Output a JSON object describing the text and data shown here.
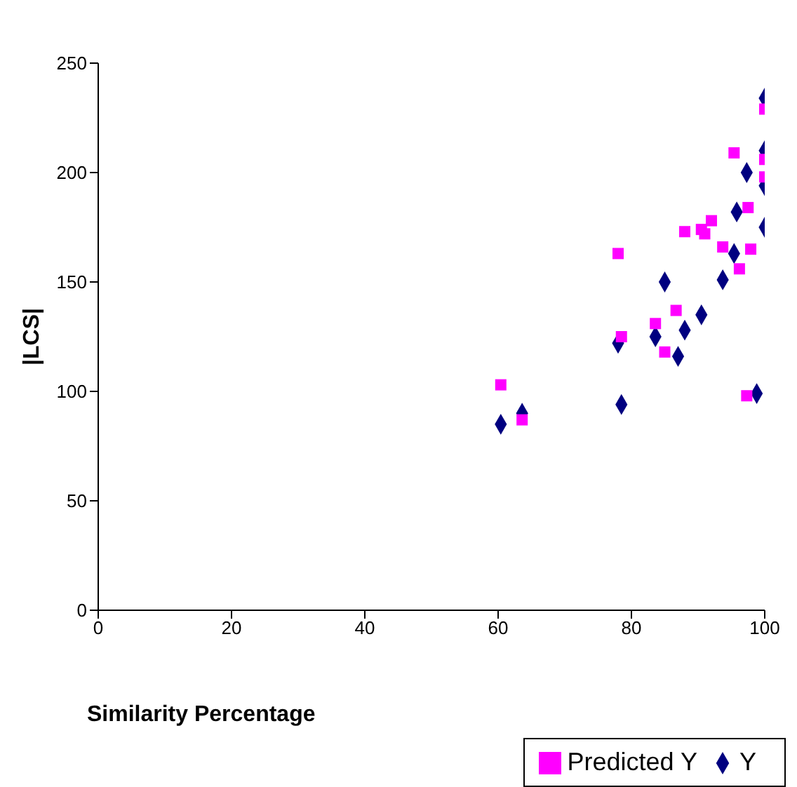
{
  "chart_data": {
    "type": "scatter",
    "xlabel": "Similarity Percentage",
    "ylabel": "|LCS|",
    "xlim": [
      0,
      100
    ],
    "xticks": [
      0,
      20,
      40,
      60,
      80,
      100
    ],
    "ylim": [
      0,
      250
    ],
    "yticks": [
      0,
      50,
      100,
      150,
      200,
      250
    ],
    "grid": false,
    "legend": "bottom right",
    "series": [
      {
        "name": "Y",
        "color": "#000080",
        "marker": "diamond",
        "x": [
          60.4,
          63.6,
          78.5,
          78,
          85,
          83.6,
          87,
          88,
          90.5,
          93.7,
          95.4,
          95.8,
          97.3,
          98.8,
          100,
          100,
          100,
          100
        ],
        "values": [
          85,
          90,
          94,
          122,
          150,
          125,
          116,
          128,
          135,
          151,
          163,
          182,
          200,
          99,
          234,
          194,
          175,
          210
        ]
      },
      {
        "name": "Predicted Y",
        "color": "#ff00ff",
        "marker": "square",
        "x": [
          60.4,
          63.6,
          78,
          78.5,
          83.6,
          85,
          86.7,
          88,
          90.5,
          91,
          92,
          93.7,
          96.2,
          97.9,
          97.5,
          97.3,
          95.4,
          100,
          100,
          100
        ],
        "values": [
          103,
          87,
          163,
          125,
          131,
          118,
          137,
          173,
          174,
          172,
          178,
          166,
          156,
          165,
          184,
          98,
          209,
          229,
          206,
          198
        ]
      }
    ]
  }
}
